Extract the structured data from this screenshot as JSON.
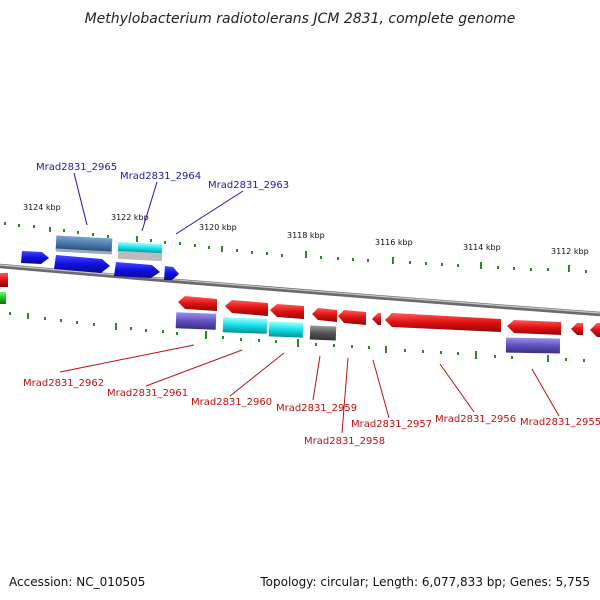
{
  "title": "Methylobacterium radiotolerans JCM 2831, complete genome",
  "footer": {
    "accession": "Accession: NC_010505",
    "summary": "Topology: circular; Length: 6,077,833 bp; Genes: 5,755"
  },
  "colors": {
    "forward_gene": "#1010e8",
    "reverse_gene": "#e01010",
    "cyan_gene": "#10e0e8",
    "steel_gene": "#4a7aaa",
    "purple_gene": "#6050c0",
    "gray_gene": "#555555",
    "backbone": "#8a8a8a",
    "tick": "#2a8a2a",
    "label_blue": "#1a1aa8",
    "label_red": "#c01010"
  },
  "ticks": [
    {
      "label": "3124 kbp"
    },
    {
      "label": "3122 kbp"
    },
    {
      "label": "3120 kbp"
    },
    {
      "label": "3118 kbp"
    },
    {
      "label": "3116 kbp"
    },
    {
      "label": "3114 kbp"
    },
    {
      "label": "3112 kbp"
    }
  ],
  "labels_forward": [
    {
      "id": "Mrad2831_2965"
    },
    {
      "id": "Mrad2831_2964"
    },
    {
      "id": "Mrad2831_2963"
    }
  ],
  "labels_reverse": [
    {
      "id": "Mrad2831_2962"
    },
    {
      "id": "Mrad2831_2961"
    },
    {
      "id": "Mrad2831_2960"
    },
    {
      "id": "Mrad2831_2959"
    },
    {
      "id": "Mrad2831_2958"
    },
    {
      "id": "Mrad2831_2957"
    },
    {
      "id": "Mrad2831_2956"
    },
    {
      "id": "Mrad2831_2955"
    }
  ]
}
